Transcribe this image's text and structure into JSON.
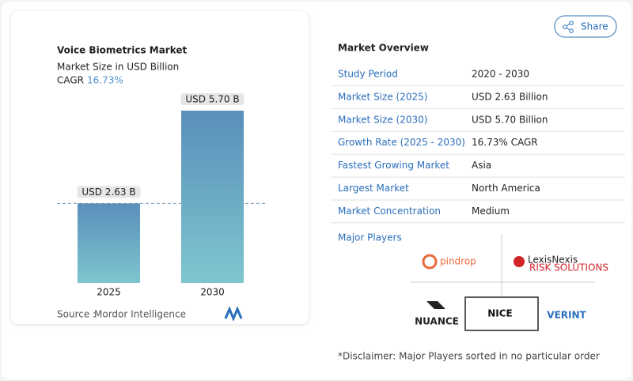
{
  "chart_data": {
    "type": "bar",
    "title": "Voice Biometrics Market",
    "subtitle": "Market Size in USD Billion",
    "cagr_label": "CAGR",
    "cagr_value": "16.73%",
    "categories": [
      "2025",
      "2030"
    ],
    "values": [
      2.63,
      5.7
    ],
    "value_labels": [
      "USD 2.63 B",
      "USD 5.70 B"
    ],
    "source_label": "Source :",
    "source": "Mordor Intelligence"
  },
  "share": "Share",
  "overview": {
    "title": "Market Overview",
    "rows": [
      [
        "Study Period",
        "2020 - 2030"
      ],
      [
        "Market Size (2025)",
        "USD 2.63 Billion"
      ],
      [
        "Market Size (2030)",
        "USD 5.70 Billion"
      ],
      [
        "Growth Rate (2025 - 2030)",
        "16.73% CAGR"
      ],
      [
        "Fastest Growing Market",
        "Asia"
      ],
      [
        "Largest Market",
        "North America"
      ],
      [
        "Market Concentration",
        "Medium"
      ]
    ]
  },
  "players": {
    "title": "Major Players",
    "logos": [
      "pindrop",
      "LexisNexis",
      "RISK SOLUTIONS",
      "NUANCE",
      "NICE",
      "VERINT"
    ]
  },
  "disclaimer": "*Disclaimer: Major Players sorted in no particular order"
}
